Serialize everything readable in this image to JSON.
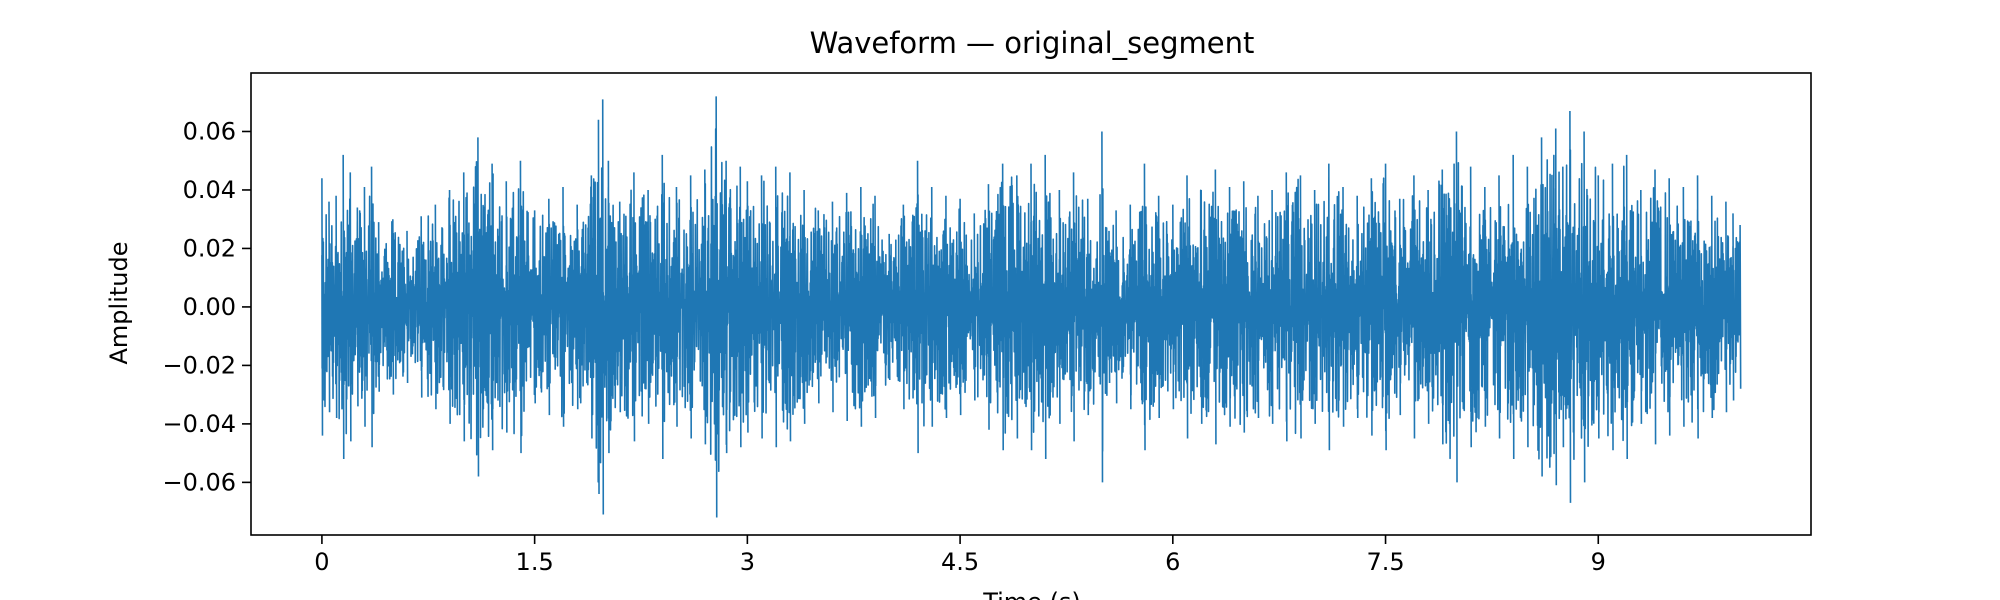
{
  "chart_data": {
    "type": "line",
    "title": "Waveform — original_segment",
    "xlabel": "Time (s)",
    "ylabel": "Amplitude",
    "xlim": [
      -0.5,
      10.5
    ],
    "ylim": [
      -0.078,
      0.08
    ],
    "x_ticks": [
      0,
      1.5,
      3,
      4.5,
      6,
      7.5,
      9
    ],
    "x_tick_labels": [
      "0",
      "1.5",
      "3",
      "4.5",
      "6",
      "7.5",
      "9"
    ],
    "y_ticks": [
      -0.06,
      -0.04,
      -0.02,
      0.0,
      0.02,
      0.04,
      0.06
    ],
    "y_tick_labels": [
      "−0.06",
      "−0.04",
      "−0.02",
      "0.00",
      "0.02",
      "0.04",
      "0.06"
    ],
    "grid": false,
    "legend": "none",
    "series": [
      {
        "color": "#1f77b4",
        "duration_s": 10.0,
        "envelope": [
          {
            "x": 0.0,
            "amp": 0.044
          },
          {
            "x": 0.05,
            "amp": 0.036
          },
          {
            "x": 0.1,
            "amp": 0.038
          },
          {
            "x": 0.15,
            "amp": 0.052
          },
          {
            "x": 0.2,
            "amp": 0.046
          },
          {
            "x": 0.25,
            "amp": 0.034
          },
          {
            "x": 0.3,
            "amp": 0.041
          },
          {
            "x": 0.35,
            "amp": 0.048
          },
          {
            "x": 0.4,
            "amp": 0.029
          },
          {
            "x": 0.5,
            "amp": 0.03
          },
          {
            "x": 0.6,
            "amp": 0.026
          },
          {
            "x": 0.7,
            "amp": 0.031
          },
          {
            "x": 0.8,
            "amp": 0.035
          },
          {
            "x": 0.9,
            "amp": 0.04
          },
          {
            "x": 1.0,
            "amp": 0.046
          },
          {
            "x": 1.1,
            "amp": 0.058
          },
          {
            "x": 1.2,
            "amp": 0.049
          },
          {
            "x": 1.3,
            "amp": 0.043
          },
          {
            "x": 1.4,
            "amp": 0.05
          },
          {
            "x": 1.5,
            "amp": 0.033
          },
          {
            "x": 1.6,
            "amp": 0.037
          },
          {
            "x": 1.7,
            "amp": 0.041
          },
          {
            "x": 1.8,
            "amp": 0.035
          },
          {
            "x": 1.9,
            "amp": 0.045
          },
          {
            "x": 1.95,
            "amp": 0.064
          },
          {
            "x": 1.98,
            "amp": 0.071
          },
          {
            "x": 2.02,
            "amp": 0.05
          },
          {
            "x": 2.1,
            "amp": 0.036
          },
          {
            "x": 2.2,
            "amp": 0.046
          },
          {
            "x": 2.3,
            "amp": 0.04
          },
          {
            "x": 2.4,
            "amp": 0.052
          },
          {
            "x": 2.5,
            "amp": 0.041
          },
          {
            "x": 2.6,
            "amp": 0.045
          },
          {
            "x": 2.7,
            "amp": 0.047
          },
          {
            "x": 2.78,
            "amp": 0.072
          },
          {
            "x": 2.85,
            "amp": 0.05
          },
          {
            "x": 2.95,
            "amp": 0.048
          },
          {
            "x": 3.0,
            "amp": 0.043
          },
          {
            "x": 3.1,
            "amp": 0.045
          },
          {
            "x": 3.2,
            "amp": 0.048
          },
          {
            "x": 3.3,
            "amp": 0.046
          },
          {
            "x": 3.4,
            "amp": 0.04
          },
          {
            "x": 3.5,
            "amp": 0.033
          },
          {
            "x": 3.6,
            "amp": 0.036
          },
          {
            "x": 3.7,
            "amp": 0.039
          },
          {
            "x": 3.8,
            "amp": 0.041
          },
          {
            "x": 3.9,
            "amp": 0.038
          },
          {
            "x": 4.0,
            "amp": 0.025
          },
          {
            "x": 4.1,
            "amp": 0.035
          },
          {
            "x": 4.2,
            "amp": 0.05
          },
          {
            "x": 4.3,
            "amp": 0.041
          },
          {
            "x": 4.4,
            "amp": 0.038
          },
          {
            "x": 4.5,
            "amp": 0.037
          },
          {
            "x": 4.6,
            "amp": 0.032
          },
          {
            "x": 4.7,
            "amp": 0.042
          },
          {
            "x": 4.8,
            "amp": 0.049
          },
          {
            "x": 4.9,
            "amp": 0.045
          },
          {
            "x": 5.0,
            "amp": 0.049
          },
          {
            "x": 5.1,
            "amp": 0.052
          },
          {
            "x": 5.2,
            "amp": 0.04
          },
          {
            "x": 5.3,
            "amp": 0.046
          },
          {
            "x": 5.4,
            "amp": 0.037
          },
          {
            "x": 5.5,
            "amp": 0.06
          },
          {
            "x": 5.55,
            "amp": 0.026
          },
          {
            "x": 5.6,
            "amp": 0.033
          },
          {
            "x": 5.7,
            "amp": 0.035
          },
          {
            "x": 5.8,
            "amp": 0.049
          },
          {
            "x": 5.9,
            "amp": 0.038
          },
          {
            "x": 6.0,
            "amp": 0.035
          },
          {
            "x": 6.1,
            "amp": 0.045
          },
          {
            "x": 6.2,
            "amp": 0.04
          },
          {
            "x": 6.3,
            "amp": 0.047
          },
          {
            "x": 6.4,
            "amp": 0.041
          },
          {
            "x": 6.5,
            "amp": 0.043
          },
          {
            "x": 6.6,
            "amp": 0.038
          },
          {
            "x": 6.7,
            "amp": 0.04
          },
          {
            "x": 6.8,
            "amp": 0.046
          },
          {
            "x": 6.9,
            "amp": 0.045
          },
          {
            "x": 7.0,
            "amp": 0.04
          },
          {
            "x": 7.1,
            "amp": 0.049
          },
          {
            "x": 7.2,
            "amp": 0.041
          },
          {
            "x": 7.3,
            "amp": 0.038
          },
          {
            "x": 7.4,
            "amp": 0.044
          },
          {
            "x": 7.5,
            "amp": 0.049
          },
          {
            "x": 7.6,
            "amp": 0.037
          },
          {
            "x": 7.7,
            "amp": 0.045
          },
          {
            "x": 7.8,
            "amp": 0.04
          },
          {
            "x": 7.9,
            "amp": 0.047
          },
          {
            "x": 8.0,
            "amp": 0.06
          },
          {
            "x": 8.1,
            "amp": 0.048
          },
          {
            "x": 8.2,
            "amp": 0.041
          },
          {
            "x": 8.3,
            "amp": 0.045
          },
          {
            "x": 8.4,
            "amp": 0.052
          },
          {
            "x": 8.5,
            "amp": 0.048
          },
          {
            "x": 8.6,
            "amp": 0.058
          },
          {
            "x": 8.7,
            "amp": 0.061
          },
          {
            "x": 8.75,
            "amp": 0.048
          },
          {
            "x": 8.8,
            "amp": 0.067
          },
          {
            "x": 8.9,
            "amp": 0.06
          },
          {
            "x": 9.0,
            "amp": 0.045
          },
          {
            "x": 9.1,
            "amp": 0.049
          },
          {
            "x": 9.2,
            "amp": 0.052
          },
          {
            "x": 9.3,
            "amp": 0.04
          },
          {
            "x": 9.4,
            "amp": 0.047
          },
          {
            "x": 9.5,
            "amp": 0.044
          },
          {
            "x": 9.6,
            "amp": 0.041
          },
          {
            "x": 9.7,
            "amp": 0.045
          },
          {
            "x": 9.8,
            "amp": 0.038
          },
          {
            "x": 9.9,
            "amp": 0.036
          },
          {
            "x": 9.95,
            "amp": 0.032
          },
          {
            "x": 10.0,
            "amp": 0.028
          }
        ]
      }
    ]
  }
}
